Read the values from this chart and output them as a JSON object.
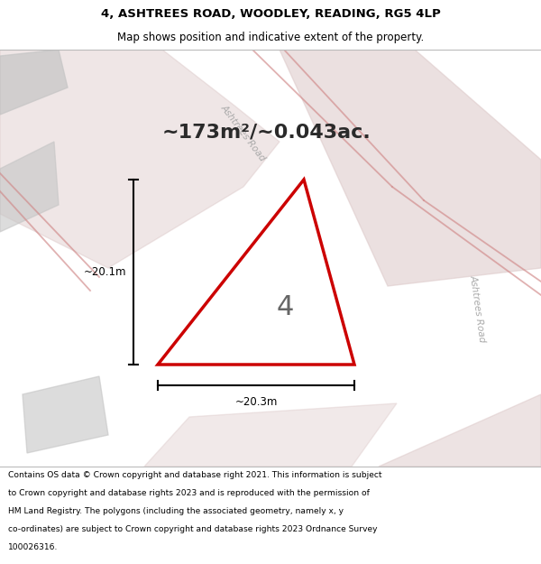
{
  "title_line1": "4, ASHTREES ROAD, WOODLEY, READING, RG5 4LP",
  "title_line2": "Map shows position and indicative extent of the property.",
  "area_text": "~173m²/~0.043ac.",
  "house_number": "4",
  "dim1_label": "~20.1m",
  "dim2_label": "~20.3m",
  "footer_lines": [
    "Contains OS data © Crown copyright and database right 2021. This information is subject",
    "to Crown copyright and database rights 2023 and is reproduced with the permission of",
    "HM Land Registry. The polygons (including the associated geometry, namely x, y",
    "co-ordinates) are subject to Crown copyright and database rights 2023 Ordnance Survey",
    "100026316."
  ],
  "map_bg": "#ebebeb",
  "property_color": "#cc0000",
  "road_text_color": "#aaaaaa",
  "title_fs": 9.5,
  "subtitle_fs": 8.5,
  "area_fs": 16,
  "number_fs": 22,
  "dim_fs": 8.5,
  "footer_fs": 6.6
}
